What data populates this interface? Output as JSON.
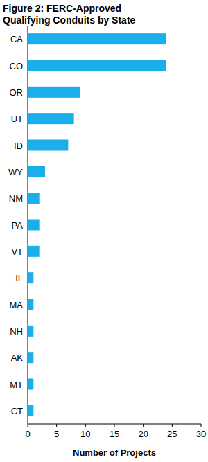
{
  "chart_data": {
    "type": "bar",
    "orientation": "horizontal",
    "title": "Figure 2: FERC-Approved Qualifying Conduits by State",
    "x_label": "Number of Projects",
    "categories": [
      "CA",
      "CO",
      "OR",
      "UT",
      "ID",
      "WY",
      "NM",
      "PA",
      "VT",
      "IL",
      "MA",
      "NH",
      "AK",
      "MT",
      "CT"
    ],
    "values": [
      24,
      24,
      9,
      8,
      7,
      3,
      2,
      2,
      2,
      1,
      1,
      1,
      1,
      1,
      1
    ],
    "color": "#1aaeea",
    "xlim": [
      0,
      30
    ],
    "xticks": [
      0,
      5,
      10,
      15,
      20,
      25,
      30
    ],
    "grid": false
  }
}
